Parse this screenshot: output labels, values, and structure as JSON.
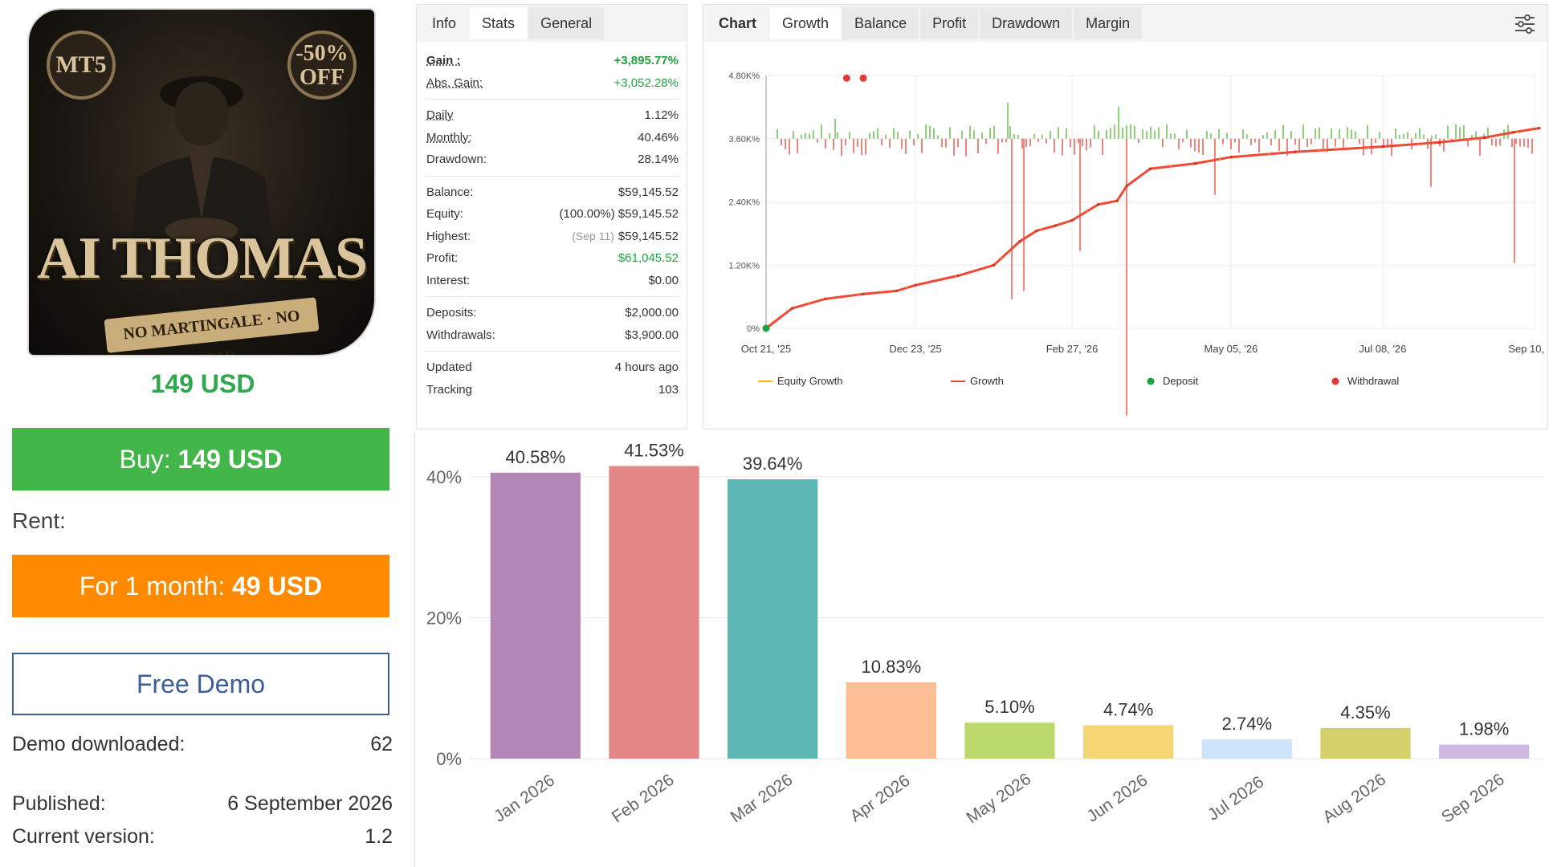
{
  "product": {
    "cover": {
      "badge_left": "MT5",
      "badge_right_top": "-50%",
      "badge_right_bottom": "OFF",
      "title": "AI THOMAS",
      "ribbon": "NO MARTINGALE · NO GRID"
    },
    "price": "149 USD",
    "buy_prefix": "Buy:",
    "buy_value": "149 USD",
    "rent_label": "Rent:",
    "rent_prefix": "For 1 month:",
    "rent_value": "49 USD",
    "demo_button": "Free Demo",
    "demo_downloaded_label": "Demo downloaded:",
    "demo_downloaded_value": "62",
    "published_label": "Published:",
    "published_value": "6 September 2026",
    "version_label": "Current version:",
    "version_value": "1.2"
  },
  "stats": {
    "tabs": [
      "Info",
      "Stats",
      "General"
    ],
    "gain_label": "Gain :",
    "gain_value": "+3,895.77%",
    "abs_gain_label": "Abs. Gain:",
    "abs_gain_value": "+3,052.28%",
    "daily_label": "Daily",
    "daily_value": "1.12%",
    "monthly_label": "Monthly:",
    "monthly_value": "40.46%",
    "drawdown_label": "Drawdown:",
    "drawdown_value": "28.14%",
    "balance_label": "Balance:",
    "balance_value": "$59,145.52",
    "equity_label": "Equity:",
    "equity_pct": "(100.00%)",
    "equity_value": "$59,145.52",
    "highest_label": "Highest:",
    "highest_date": "(Sep 11)",
    "highest_value": "$59,145.52",
    "profit_label": "Profit:",
    "profit_value": "$61,045.52",
    "interest_label": "Interest:",
    "interest_value": "$0.00",
    "deposits_label": "Deposits:",
    "deposits_value": "$2,000.00",
    "withdrawals_label": "Withdrawals:",
    "withdrawals_value": "$3,900.00",
    "updated_label": "Updated",
    "updated_value": "4 hours ago",
    "tracking_label": "Tracking",
    "tracking_value": "103"
  },
  "growth_panel": {
    "tabs": [
      "Chart",
      "Growth",
      "Balance",
      "Profit",
      "Drawdown",
      "Margin"
    ],
    "settings_icon": "sliders-icon"
  },
  "colors": {
    "growth_line": "#ef4a36",
    "equity_line": "#f6b800",
    "deposit": "#1ea33c",
    "withdrawal": "#e53935",
    "positive_bar": "#8fd07a",
    "negative_bar": "#f0837a",
    "buy": "#43b649",
    "rent": "#ff8a00",
    "price": "#2fa84f"
  },
  "chart_data": [
    {
      "type": "line",
      "title": "",
      "y_ticks": [
        "4.80K%",
        "3.60K%",
        "2.40K%",
        "1.20K%",
        "0%"
      ],
      "y_tick_values": [
        4800,
        3600,
        2400,
        1200,
        0
      ],
      "ylim": [
        0,
        4800
      ],
      "x_ticks": [
        "Oct 21, '25",
        "Dec 23, '25",
        "Feb 27, '26",
        "May 05, '26",
        "Jul 08, '26",
        "Sep 10, '26"
      ],
      "legend": [
        "Equity Growth",
        "Growth",
        "Deposit",
        "Withdrawal"
      ],
      "legend_position": "bottom",
      "series": [
        {
          "name": "Growth",
          "x": [
            "Oct 21, '25",
            "Nov 01, '25",
            "Nov 15, '25",
            "Dec 01, '25",
            "Dec 15, '25",
            "Dec 23, '25",
            "Jan 10, '26",
            "Jan 25, '26",
            "Feb 05, '26",
            "Feb 12, '26",
            "Feb 20, '26",
            "Feb 27, '26",
            "Mar 10, '26",
            "Mar 18, '26",
            "Mar 22, '26",
            "Apr 01, '26",
            "Apr 20, '26",
            "May 05, '26",
            "Jun 01, '26",
            "Jul 08, '26",
            "Aug 01, '26",
            "Aug 20, '26",
            "Sep 01, '26",
            "Sep 12, '26"
          ],
          "y": [
            0,
            380,
            560,
            650,
            710,
            820,
            1000,
            1200,
            1650,
            1850,
            1950,
            2050,
            2350,
            2420,
            2700,
            3030,
            3130,
            3250,
            3350,
            3450,
            3530,
            3620,
            3720,
            3800
          ]
        }
      ],
      "deposits": [
        {
          "x": "Oct 21, '25",
          "y": 0
        }
      ],
      "withdrawals": [
        {
          "x": "Nov 24, '25",
          "y": 4750
        },
        {
          "x": "Dec 01, '25",
          "y": 4750
        }
      ],
      "grid": true
    },
    {
      "type": "bar",
      "title": "",
      "categories": [
        "Jan 2026",
        "Feb 2026",
        "Mar 2026",
        "Apr 2026",
        "May 2026",
        "Jun 2026",
        "Jul 2026",
        "Aug 2026",
        "Sep 2026"
      ],
      "values": [
        40.58,
        41.53,
        39.64,
        10.83,
        5.1,
        4.74,
        2.74,
        4.35,
        1.98
      ],
      "labels": [
        "40.58%",
        "41.53%",
        "39.64%",
        "10.83%",
        "5.10%",
        "4.74%",
        "2.74%",
        "4.35%",
        "1.98%"
      ],
      "bar_colors": [
        "#b287b6",
        "#e28785",
        "#5bb6b4",
        "#fdbd94",
        "#bcd96b",
        "#f5d574",
        "#cde6fb",
        "#d5d16a",
        "#cdb8e2"
      ],
      "y_ticks": [
        "40%",
        "20%",
        "0%"
      ],
      "y_tick_values": [
        40,
        20,
        0
      ],
      "ylim": [
        0,
        45
      ],
      "grid": true
    }
  ]
}
